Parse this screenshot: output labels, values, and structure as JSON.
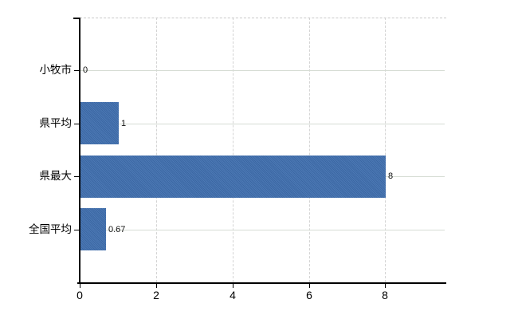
{
  "chart_data": {
    "type": "bar",
    "orientation": "horizontal",
    "title": "",
    "xlabel": "",
    "ylabel": "",
    "categories": [
      "小牧市",
      "県平均",
      "県最大",
      "全国平均"
    ],
    "values": [
      0,
      1,
      8,
      0.67
    ],
    "value_labels": [
      "0",
      "1",
      "8",
      "0.67"
    ],
    "xticks": [
      0,
      2,
      4,
      6,
      8
    ],
    "xtick_labels": [
      "0",
      "2",
      "4",
      "6",
      "8"
    ],
    "xlim": [
      0,
      9.6
    ],
    "grid": true,
    "legend": false,
    "colors": {
      "bar": "#3f6faf",
      "h_gridline": "#d6dcd4",
      "v_gridline": "#d4d4d4",
      "top_border": "#c9c9c9",
      "axis": "#000000",
      "text": "#000000",
      "background": "#ffffff"
    }
  }
}
